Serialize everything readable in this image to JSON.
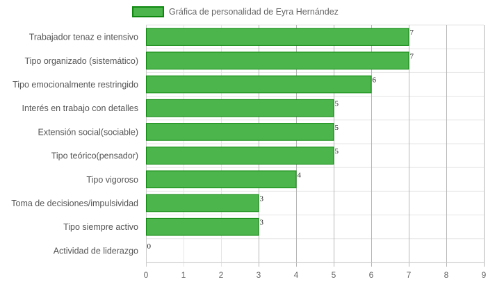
{
  "chart_data": {
    "type": "bar",
    "orientation": "horizontal",
    "categories": [
      "Trabajador tenaz e intensivo",
      "Tipo organizado (sistemático)",
      "Tipo emocionalmente restringido",
      "Interés en trabajo con detalles",
      "Extensión social(sociable)",
      "Tipo teórico(pensador)",
      "Tipo vigoroso",
      "Toma de decisiones/impulsividad",
      "Tipo siempre activo",
      "Actividad de liderazgo"
    ],
    "series": [
      {
        "name": "Gráfica de personalidad de Eyra Hernández",
        "values": [
          7,
          7,
          6,
          5,
          5,
          5,
          4,
          3,
          3,
          0
        ]
      }
    ],
    "xlim": [
      0,
      9
    ],
    "x_ticks": [
      "0",
      "1",
      "2",
      "3",
      "4",
      "5",
      "6",
      "7",
      "8",
      "9"
    ],
    "grid": true,
    "legend_position": "top-center",
    "colors": {
      "bar_fill": "#4cb54c",
      "bar_border": "#0e870e",
      "grid": "#e5e5e5",
      "grid_dark": "#b5b5b5",
      "axis": "#cccccc"
    }
  }
}
